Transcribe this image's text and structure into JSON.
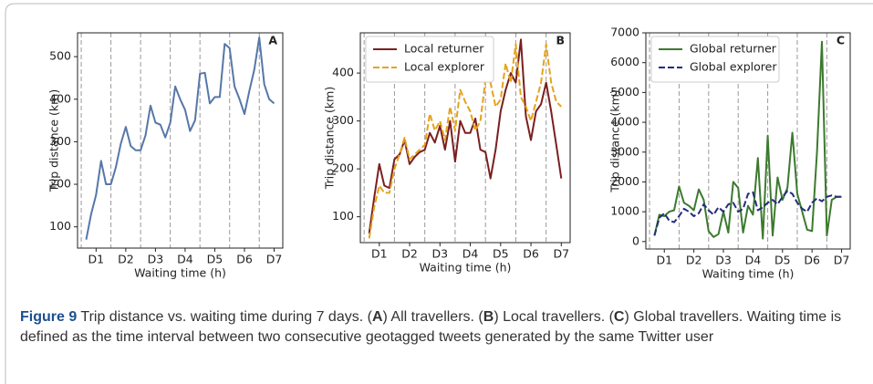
{
  "chart_data": [
    {
      "type": "line",
      "panel_label": "A",
      "xlabel": "Waiting time (h)",
      "ylabel": "Trip distance (km)",
      "x": [
        4,
        8,
        12,
        16,
        20,
        24,
        28,
        32,
        36,
        40,
        44,
        48,
        52,
        56,
        60,
        64,
        68,
        72,
        76,
        80,
        84,
        88,
        92,
        96,
        100,
        104,
        108,
        112,
        116,
        120,
        124,
        128,
        132,
        136,
        140,
        144,
        148,
        152,
        156
      ],
      "values": [
        70,
        130,
        175,
        255,
        200,
        200,
        240,
        295,
        335,
        290,
        280,
        280,
        315,
        385,
        345,
        340,
        310,
        345,
        430,
        400,
        375,
        325,
        350,
        460,
        462,
        390,
        405,
        405,
        530,
        520,
        430,
        400,
        365,
        420,
        470,
        545,
        435,
        400,
        390
      ],
      "color": "#5677a8",
      "xlim": [
        -3,
        163
      ],
      "xticks": [
        {
          "value": 12,
          "label": "D1"
        },
        {
          "value": 36,
          "label": "D2"
        },
        {
          "value": 60,
          "label": "D3"
        },
        {
          "value": 84,
          "label": "D4"
        },
        {
          "value": 108,
          "label": "D5"
        },
        {
          "value": 132,
          "label": "D6"
        },
        {
          "value": 156,
          "label": "D7"
        }
      ],
      "day_lines": [
        0,
        24,
        48,
        72,
        96,
        120,
        144
      ],
      "ylim": [
        50,
        556
      ],
      "yticks": [
        100,
        200,
        300,
        400,
        500
      ]
    },
    {
      "type": "line",
      "panel_label": "B",
      "xlabel": "Waiting time (h)",
      "ylabel": "Trip distance (km)",
      "x": [
        4,
        8,
        12,
        16,
        20,
        24,
        28,
        32,
        36,
        40,
        44,
        48,
        52,
        56,
        60,
        64,
        68,
        72,
        76,
        80,
        84,
        88,
        92,
        96,
        100,
        104,
        108,
        112,
        116,
        120,
        124,
        128,
        132,
        136,
        140,
        144,
        148,
        152,
        156
      ],
      "series": [
        {
          "name": "Local returner",
          "color": "#7a1f1f",
          "linestyle": "solid",
          "values": [
            65,
            140,
            210,
            165,
            160,
            220,
            230,
            260,
            210,
            225,
            235,
            240,
            275,
            255,
            290,
            240,
            300,
            215,
            300,
            275,
            275,
            305,
            240,
            235,
            180,
            240,
            320,
            365,
            400,
            380,
            470,
            310,
            260,
            320,
            335,
            380,
            320,
            250,
            180
          ]
        },
        {
          "name": "Local explorer",
          "color": "#e6a21a",
          "linestyle": "dashed",
          "values": [
            55,
            120,
            165,
            150,
            150,
            200,
            230,
            265,
            220,
            230,
            240,
            250,
            315,
            280,
            300,
            260,
            330,
            280,
            365,
            340,
            320,
            280,
            300,
            385,
            380,
            330,
            345,
            420,
            380,
            460,
            350,
            330,
            300,
            340,
            380,
            460,
            380,
            340,
            330
          ]
        }
      ],
      "legend": "upper left",
      "xlim": [
        -3,
        163
      ],
      "xticks": [
        {
          "value": 12,
          "label": "D1"
        },
        {
          "value": 36,
          "label": "D2"
        },
        {
          "value": 60,
          "label": "D3"
        },
        {
          "value": 84,
          "label": "D4"
        },
        {
          "value": 108,
          "label": "D5"
        },
        {
          "value": 132,
          "label": "D6"
        },
        {
          "value": 156,
          "label": "D7"
        }
      ],
      "day_lines": [
        0,
        24,
        48,
        72,
        96,
        120,
        144
      ],
      "ylim": [
        46,
        484
      ],
      "yticks": [
        100,
        200,
        300,
        400
      ]
    },
    {
      "type": "line",
      "panel_label": "C",
      "xlabel": "Waiting time (h)",
      "ylabel": "Trip distance (km)",
      "x": [
        4,
        8,
        12,
        16,
        20,
        24,
        28,
        32,
        36,
        40,
        44,
        48,
        52,
        56,
        60,
        64,
        68,
        72,
        76,
        80,
        84,
        88,
        92,
        96,
        100,
        104,
        108,
        112,
        116,
        120,
        124,
        128,
        132,
        136,
        140,
        144,
        148,
        152,
        156
      ],
      "series": [
        {
          "name": "Global returner",
          "color": "#3c7a2e",
          "linestyle": "solid",
          "values": [
            200,
            900,
            850,
            1000,
            1050,
            1850,
            1300,
            1200,
            1050,
            1750,
            1400,
            350,
            150,
            250,
            1000,
            300,
            2000,
            1800,
            300,
            1200,
            900,
            2800,
            100,
            3550,
            200,
            2150,
            1400,
            1800,
            3650,
            1600,
            1000,
            400,
            350,
            3000,
            6700,
            200,
            1400,
            1500,
            1500
          ]
        },
        {
          "name": "Global explorer",
          "color": "#232c7e",
          "linestyle": "dashed",
          "values": [
            200,
            800,
            950,
            700,
            650,
            850,
            1100,
            1000,
            850,
            950,
            1250,
            1050,
            900,
            1150,
            1000,
            1250,
            1300,
            1000,
            1100,
            1600,
            1650,
            1050,
            1150,
            1300,
            1400,
            1250,
            1500,
            1700,
            1600,
            1300,
            1100,
            1000,
            1300,
            1450,
            1350,
            1500,
            1550,
            1500,
            1500
          ]
        }
      ],
      "legend": "upper left",
      "xlim": [
        -3,
        163
      ],
      "xticks": [
        {
          "value": 12,
          "label": "D1"
        },
        {
          "value": 36,
          "label": "D2"
        },
        {
          "value": 60,
          "label": "D3"
        },
        {
          "value": 84,
          "label": "D4"
        },
        {
          "value": 108,
          "label": "D5"
        },
        {
          "value": 132,
          "label": "D6"
        },
        {
          "value": 156,
          "label": "D7"
        }
      ],
      "day_lines": [
        0,
        24,
        48,
        72,
        96,
        120,
        144
      ],
      "ylim": [
        -250,
        7000
      ],
      "yticks": [
        0,
        1000,
        2000,
        3000,
        4000,
        5000,
        6000,
        7000
      ]
    }
  ],
  "caption": [
    "Figure 9",
    " Trip distance vs. waiting time during 7 days. (",
    "A",
    ") All travellers. (",
    "B",
    ") Local travellers. (",
    "C",
    ") Global travellers. Waiting time is defined as the time interval between two consecutive geotagged tweets generated by the same Twitter user"
  ]
}
